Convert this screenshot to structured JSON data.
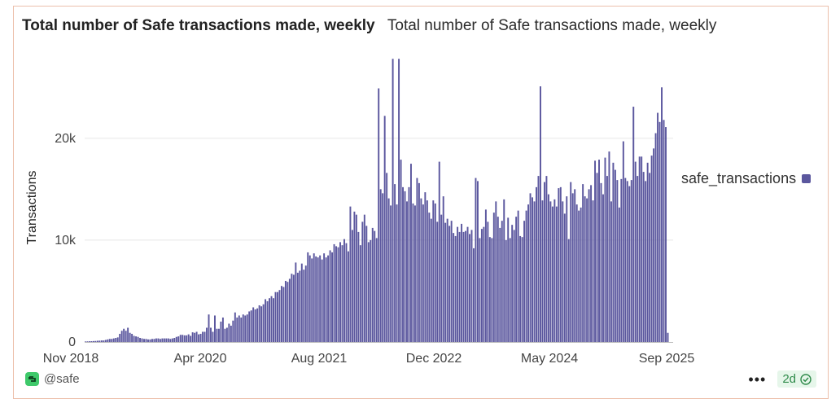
{
  "header": {
    "title": "Total number of Safe transactions made, weekly",
    "subtitle": "Total number of Safe transactions made, weekly"
  },
  "footer": {
    "author": "@safe",
    "more_label": "•••",
    "freshness": "2d"
  },
  "colors": {
    "bar": "#5b579e",
    "gridline": "#e6e6e6",
    "border": "#ecc0ab",
    "badge_bg": "#e6f6ea",
    "badge_text": "#2f8a4a"
  },
  "chart_data": {
    "type": "bar",
    "title": "Total number of Safe transactions made, weekly",
    "xlabel": "",
    "ylabel": "Transactions",
    "ylim": [
      0,
      27500
    ],
    "y_ticks": [
      {
        "value": 0,
        "label": "0"
      },
      {
        "value": 10000,
        "label": "10k"
      },
      {
        "value": 20000,
        "label": "20k"
      }
    ],
    "x_ticks": [
      "Nov 2018",
      "Apr 2020",
      "Aug 2021",
      "Dec 2022",
      "May 2024",
      "Sep 2025"
    ],
    "grid": true,
    "legend": {
      "position": "right",
      "entries": [
        "safe_transactions"
      ]
    },
    "series": [
      {
        "name": "safe_transactions",
        "x_start": "Nov 2018",
        "interval": "weekly",
        "values": [
          50,
          60,
          70,
          80,
          90,
          100,
          120,
          130,
          150,
          150,
          200,
          250,
          300,
          300,
          350,
          400,
          450,
          800,
          1100,
          1300,
          1100,
          1400,
          900,
          800,
          600,
          550,
          500,
          400,
          350,
          300,
          300,
          250,
          250,
          300,
          300,
          350,
          350,
          300,
          350,
          350,
          350,
          350,
          300,
          350,
          400,
          500,
          550,
          700,
          700,
          650,
          650,
          750,
          600,
          950,
          900,
          1000,
          750,
          800,
          1000,
          1000,
          1400,
          2700,
          1400,
          1000,
          2600,
          1300,
          1300,
          2000,
          2400,
          1300,
          1400,
          1800,
          1600,
          2100,
          2900,
          2400,
          2600,
          2400,
          2700,
          2600,
          2700,
          3000,
          3100,
          3400,
          3200,
          3300,
          3600,
          3500,
          3700,
          4200,
          4000,
          4300,
          4500,
          4300,
          4900,
          4900,
          5100,
          5500,
          5400,
          6000,
          5900,
          6200,
          6700,
          6600,
          7800,
          6800,
          7000,
          7700,
          7100,
          7500,
          8800,
          8500,
          8200,
          8700,
          8400,
          8300,
          8500,
          8100,
          8700,
          8300,
          8500,
          9000,
          8800,
          9600,
          9400,
          9300,
          9800,
          9500,
          10100,
          9700,
          8900,
          13300,
          11000,
          12800,
          12500,
          10800,
          9500,
          11800,
          12500,
          11400,
          9800,
          10000,
          11200,
          10900,
          10200,
          24900,
          15000,
          14600,
          22200,
          16600,
          14100,
          13400,
          27800,
          15500,
          13500,
          27800,
          17900,
          15200,
          14800,
          13800,
          15200,
          17500,
          13600,
          13400,
          16100,
          15600,
          14100,
          13500,
          14700,
          13900,
          12700,
          12100,
          13900,
          13600,
          11800,
          17700,
          12500,
          14300,
          11700,
          12100,
          11400,
          11900,
          10700,
          10400,
          11300,
          10800,
          11600,
          10800,
          10900,
          11300,
          10600,
          11000,
          9200,
          16100,
          15800,
          10200,
          11100,
          11300,
          13000,
          11800,
          10300,
          10200,
          12700,
          13800,
          12300,
          11200,
          11900,
          14000,
          10000,
          12200,
          10200,
          11500,
          11000,
          12300,
          12900,
          10400,
          10300,
          11900,
          12900,
          13500,
          14600,
          14200,
          13800,
          15200,
          16300,
          25100,
          13900,
          15700,
          16300,
          14500,
          13800,
          13300,
          14000,
          13300,
          15100,
          15200,
          13800,
          12600,
          14300,
          10100,
          15700,
          14600,
          15000,
          13500,
          12900,
          13200,
          15500,
          14300,
          14100,
          15000,
          15400,
          13900,
          17800,
          16600,
          17900,
          15600,
          14500,
          18100,
          16300,
          18700,
          13800,
          17600,
          16900,
          15900,
          13200,
          16000,
          19700,
          16100,
          15800,
          15300,
          15900,
          23100,
          17700,
          16300,
          18200,
          18200,
          16700,
          15800,
          17600,
          16600,
          18300,
          19000,
          20500,
          22500,
          21600,
          25000,
          21800,
          21100,
          900
        ]
      }
    ]
  }
}
